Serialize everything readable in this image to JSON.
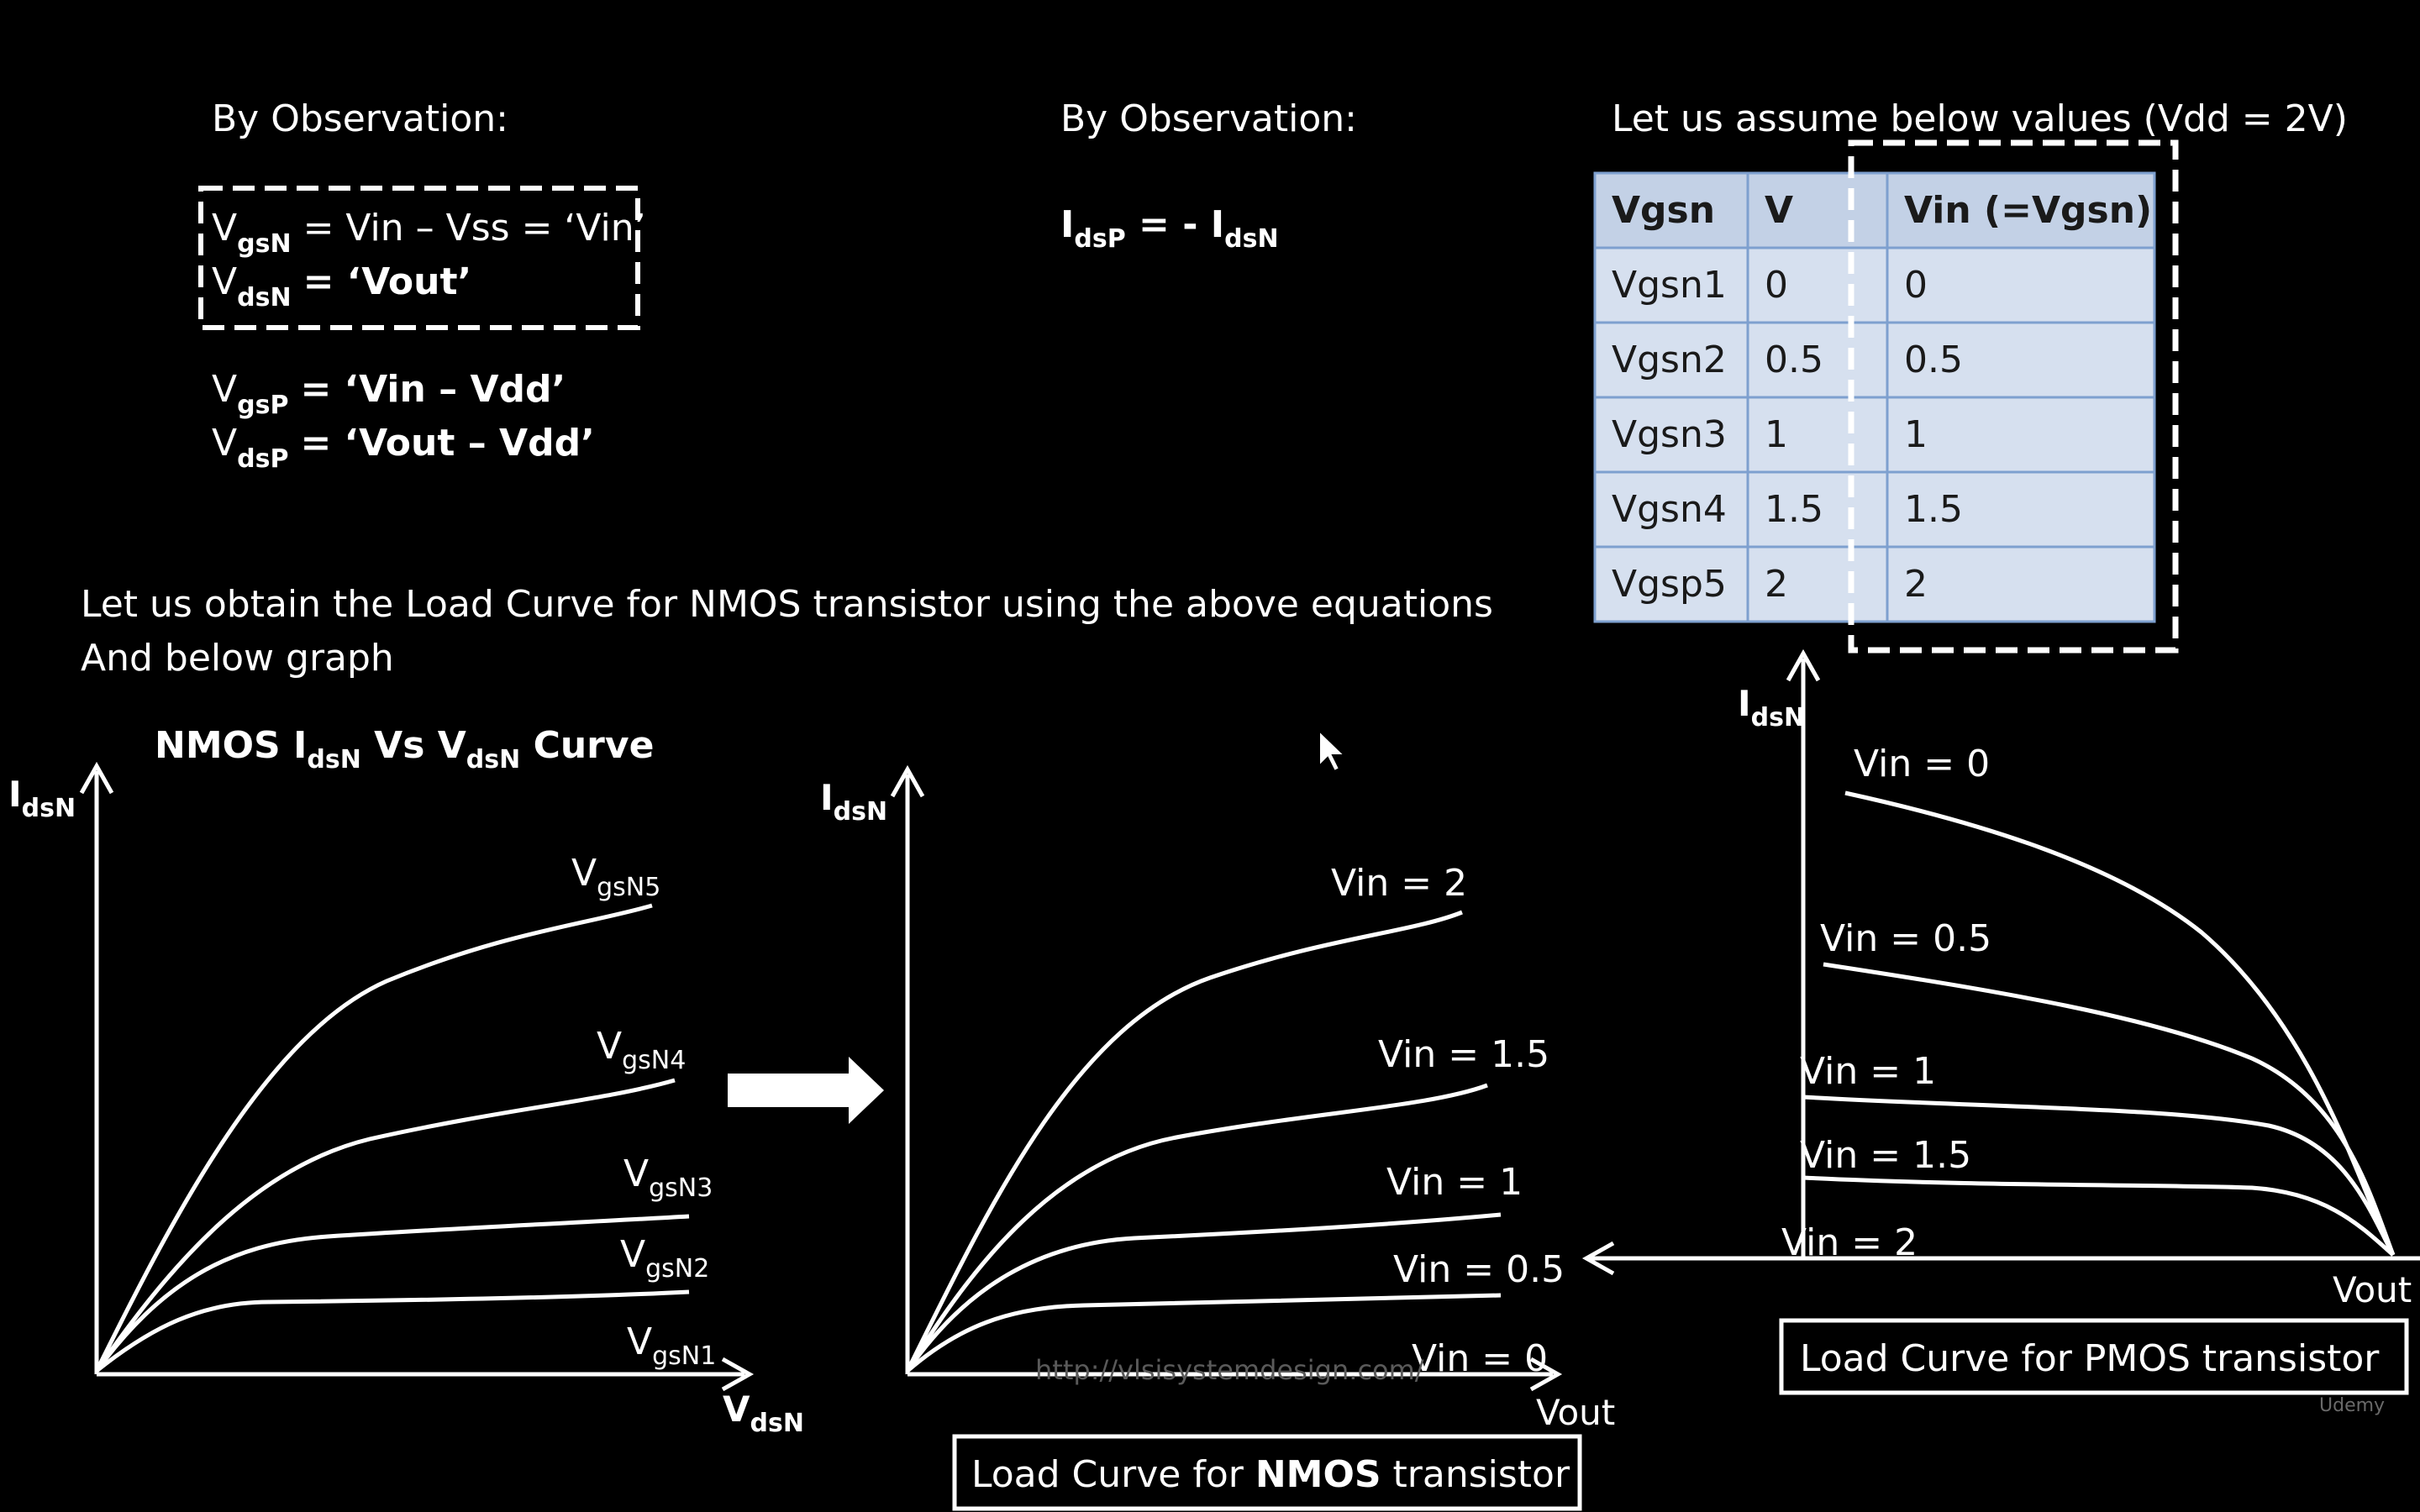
{
  "colors": {
    "background": "#000000",
    "foreground": "#ffffff",
    "table_cell": "#d6e0ef",
    "table_header": "#c3d1e6",
    "table_border": "#7ea0cf",
    "table_text": "#1a1a1a"
  },
  "left_observation": {
    "heading": "By Observation:",
    "boxed": [
      {
        "var": "V",
        "sub": "gsN",
        "rhs": "= Vin – Vss = ‘Vin’"
      },
      {
        "var": "V",
        "sub": "dsN",
        "rhs": "= ‘Vout’"
      }
    ],
    "plain": [
      {
        "var": "V",
        "sub": "gsP",
        "rhs": "= ‘Vin – Vdd’"
      },
      {
        "var": "V",
        "sub": "dsP",
        "rhs": "= ‘Vout – Vdd’"
      }
    ]
  },
  "middle_observation": {
    "heading": "By Observation:",
    "lhs_var": "I",
    "lhs_sub": "dsP",
    "mid": " = - I",
    "rhs_sub": "dsN"
  },
  "table": {
    "heading": "Let us assume below values (Vdd = 2V)",
    "headers": [
      "Vgsn",
      "V",
      "Vin (=Vgsn)"
    ],
    "rows": [
      [
        "Vgsn1",
        "0",
        "0"
      ],
      [
        "Vgsn2",
        "0.5",
        "0.5"
      ],
      [
        "Vgsn3",
        "1",
        "1"
      ],
      [
        "Vgsn4",
        "1.5",
        "1.5"
      ],
      [
        "Vgsp5",
        "2",
        "2"
      ]
    ]
  },
  "instruction": {
    "line1": "Let us obtain the Load Curve for NMOS transistor using the above equations",
    "line2": "And below graph"
  },
  "graph1": {
    "title_parts": [
      "NMOS I",
      "dsN",
      " Vs V",
      "dsN",
      " Curve"
    ],
    "y_label": "I",
    "y_sub": "dsN",
    "x_label": "V",
    "x_sub": "dsN",
    "curve_labels": [
      {
        "main": "V",
        "sub": "gsN5"
      },
      {
        "main": "V",
        "sub": "gsN4"
      },
      {
        "main": "V",
        "sub": "gsN3"
      },
      {
        "main": "V",
        "sub": "gsN2"
      },
      {
        "main": "V",
        "sub": "gsN1"
      }
    ]
  },
  "graph2": {
    "y_label": "I",
    "y_sub": "dsN",
    "x_label": "Vout",
    "curve_labels": [
      "Vin = 2",
      "Vin = 1.5",
      "Vin = 1",
      "Vin = 0.5",
      "Vin = 0"
    ],
    "caption_plain": "Load Curve for ",
    "caption_bold": "NMOS",
    "caption_tail": " transistor",
    "watermark": "http://vlsisystemdesign.com/"
  },
  "graph3": {
    "y_label": "I",
    "y_sub": "dsN",
    "x_label": "Vout",
    "curve_labels": [
      "Vin = 0",
      "Vin = 0.5",
      "Vin = 1",
      "Vin = 1.5",
      "Vin = 2"
    ],
    "caption": "Load Curve for PMOS transistor"
  },
  "brand": "Udemy"
}
